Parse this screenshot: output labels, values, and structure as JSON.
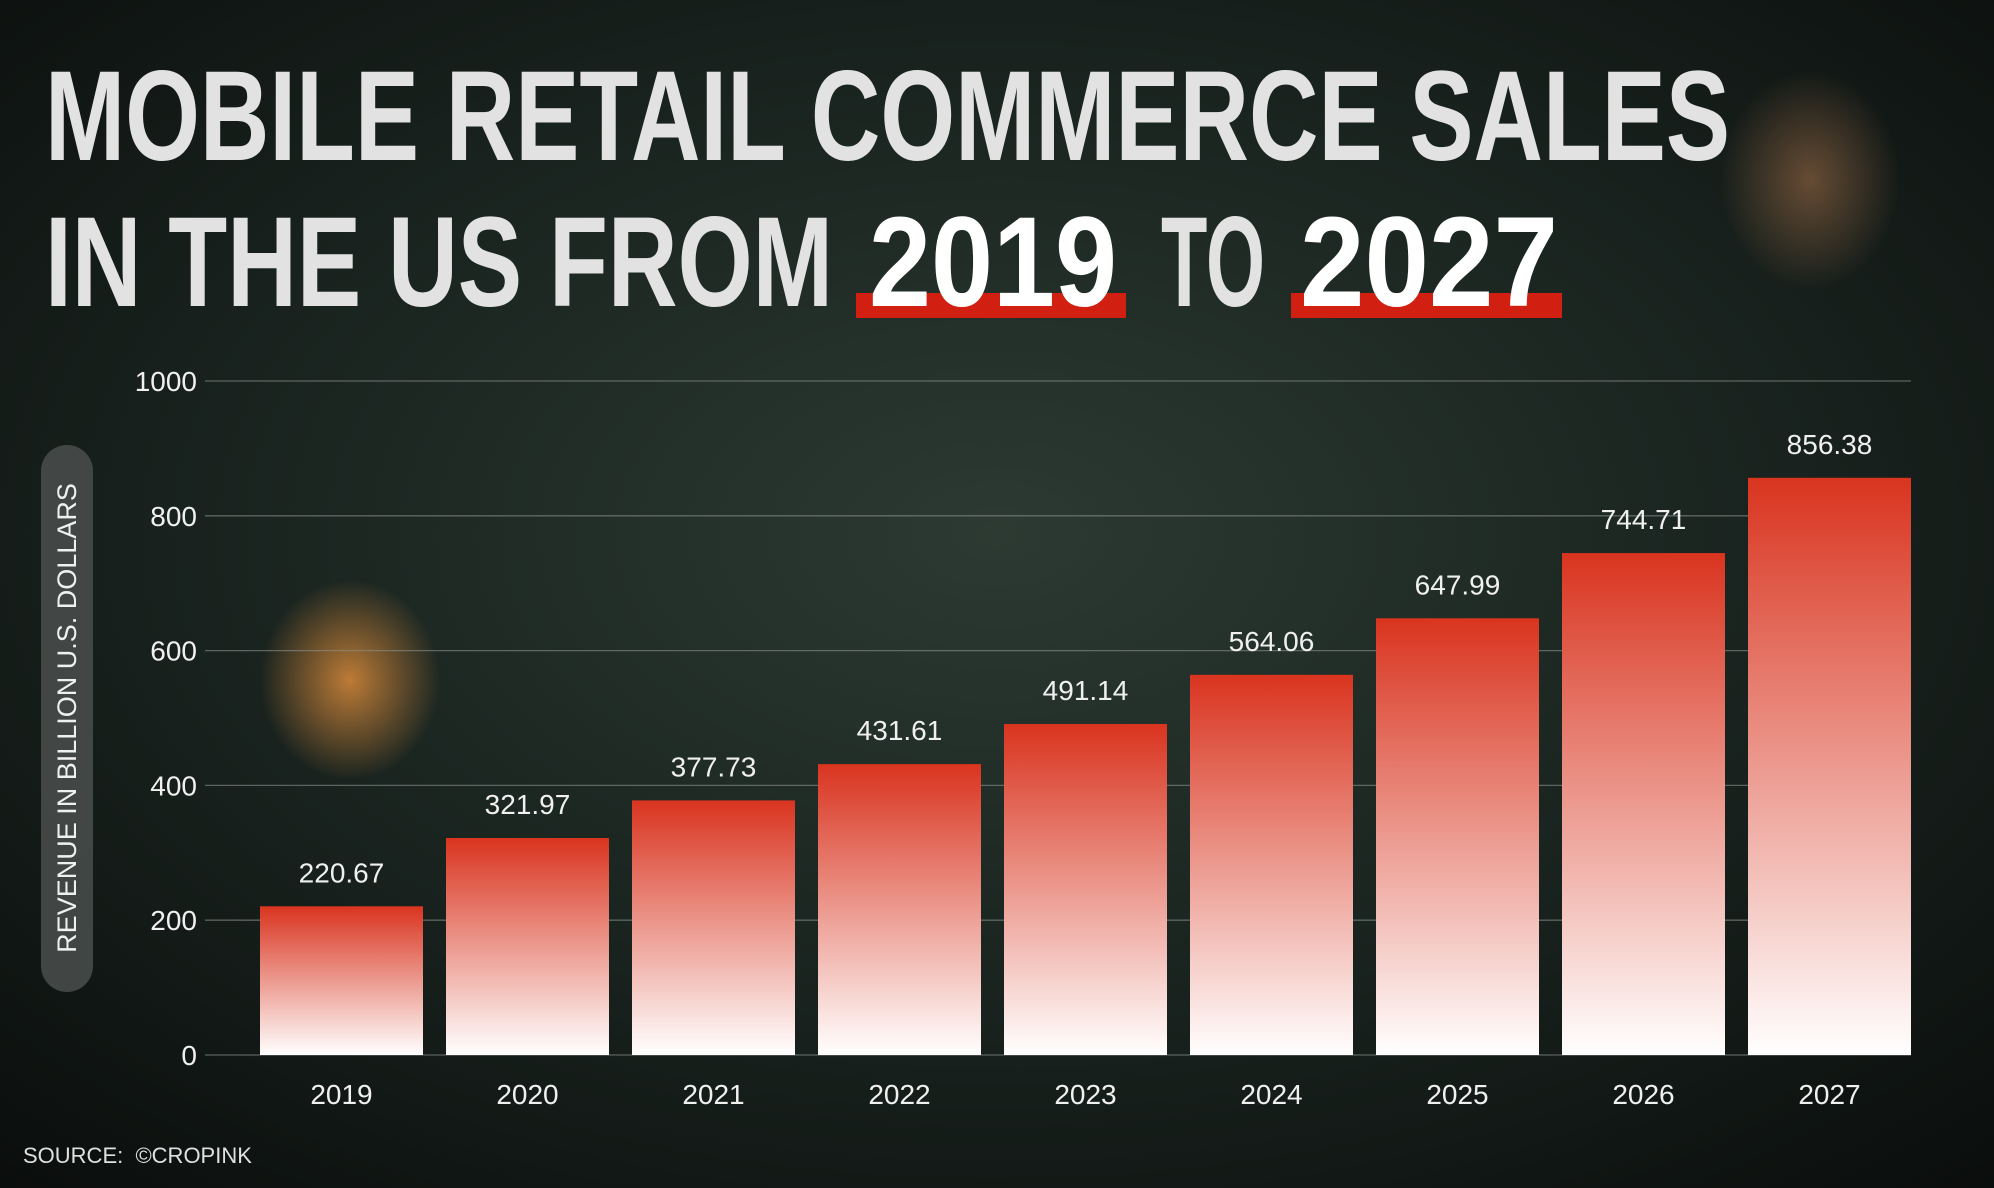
{
  "chart_data": {
    "type": "bar",
    "title": [
      "MOBILE RETAIL COMMERCE SALES",
      "IN THE US FROM",
      "2019",
      "TO",
      "2027"
    ],
    "y_axis_label": "REVENUE IN BILLION U.S. DOLLARS",
    "source": "SOURCE:  ©CROPINK",
    "categories": [
      "2019",
      "2020",
      "2021",
      "2022",
      "2023",
      "2024",
      "2025",
      "2026",
      "2027"
    ],
    "values": [
      220.67,
      321.97,
      377.73,
      431.61,
      491.14,
      564.06,
      647.99,
      744.71,
      856.38
    ],
    "color": "#d9341f",
    "ylim": [
      0,
      1000
    ],
    "yticks": [
      0,
      200,
      400,
      600,
      800,
      1000
    ],
    "grid": true
  }
}
